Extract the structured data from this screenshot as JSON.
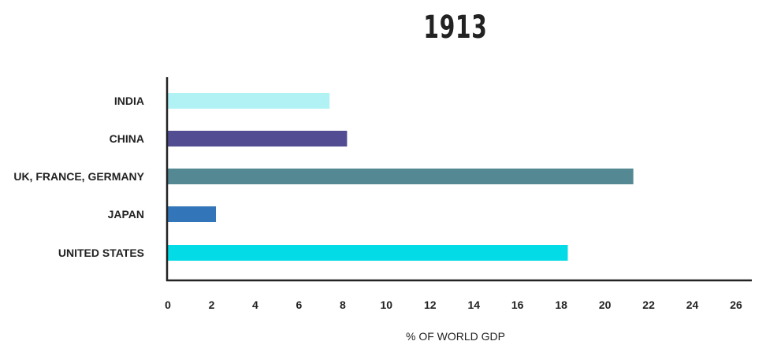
{
  "chart_data": {
    "type": "bar",
    "orientation": "horizontal",
    "title": "1913",
    "xlabel": "% OF WORLD GDP",
    "ylabel": "",
    "xlim": [
      0,
      26
    ],
    "x_ticks": [
      0,
      2,
      4,
      6,
      8,
      10,
      12,
      14,
      16,
      18,
      20,
      22,
      24,
      26
    ],
    "grid": false,
    "legend": "none",
    "categories": [
      "INDIA",
      "CHINA",
      "UK, FRANCE, GERMANY",
      "JAPAN",
      "UNITED STATES"
    ],
    "values": [
      7.4,
      8.2,
      21.3,
      2.2,
      18.3
    ],
    "colors": [
      "#b1f2f5",
      "#524d92",
      "#548893",
      "#3275b8",
      "#03dbe6"
    ]
  }
}
